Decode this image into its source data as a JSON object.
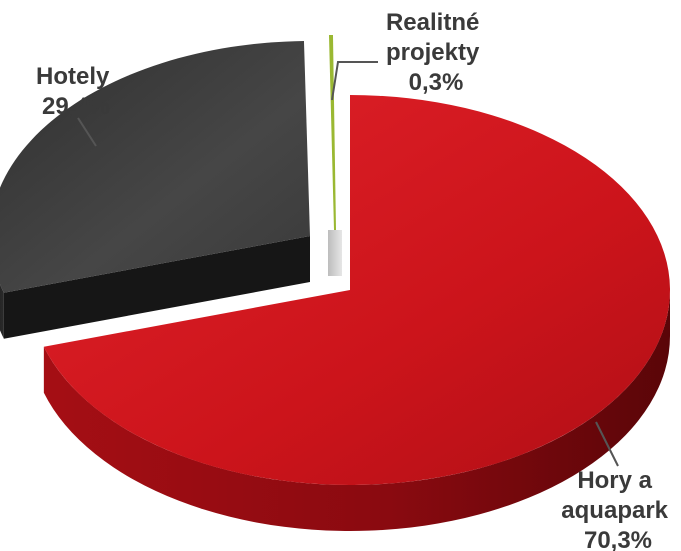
{
  "chart_data": {
    "type": "pie",
    "style": "3d-exploded",
    "slices": [
      {
        "label_lines": [
          "Hory a",
          "aquapark"
        ],
        "value": 70.3,
        "value_label": "70,3%",
        "color": "#d0141c"
      },
      {
        "label_lines": [
          "Hotely"
        ],
        "value": 29.4,
        "value_label": "29,4%",
        "color": "#3c3c3c"
      },
      {
        "label_lines": [
          "Realitné",
          "projekty"
        ],
        "value": 0.3,
        "value_label": "0,3%",
        "color": "#9ab832"
      }
    ],
    "legend": "none"
  }
}
